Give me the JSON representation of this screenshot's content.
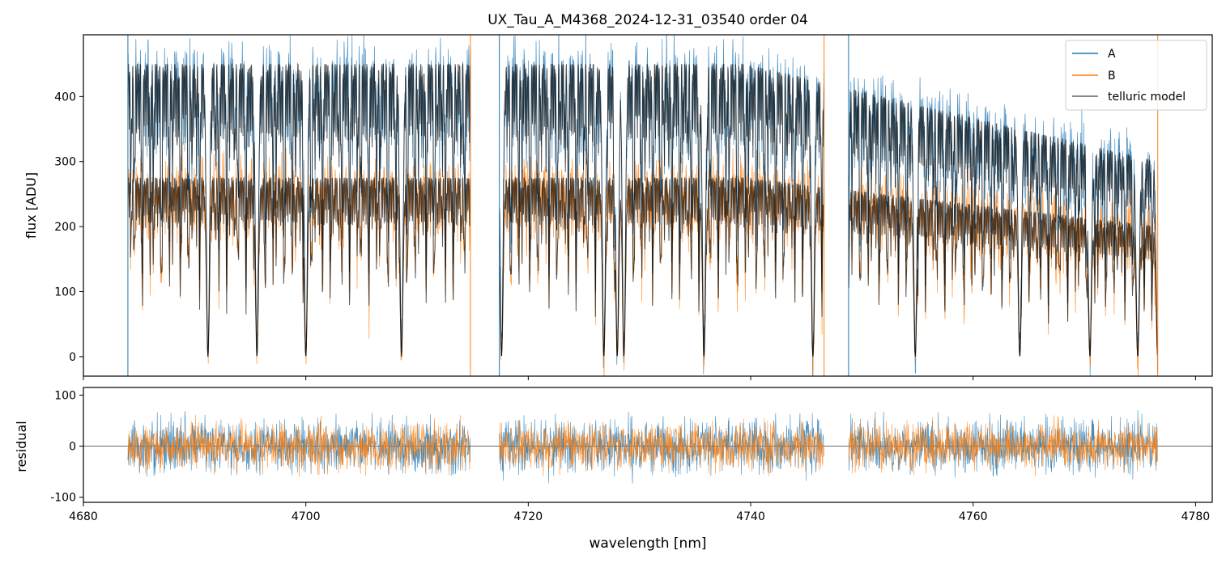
{
  "title": "UX_Tau_A_M4368_2024-12-31_03540  order 04",
  "colors": {
    "A": "#1f77b4",
    "B": "#ff7f0e",
    "model": "#000000",
    "zero": "#555555"
  },
  "chart_data": [
    {
      "type": "line",
      "panel": "top",
      "xlabel": "",
      "ylabel": "flux [ADU]",
      "xlim": [
        4680,
        4781.5
      ],
      "ylim": [
        -30,
        495
      ],
      "yticks": [
        0,
        100,
        200,
        300,
        400
      ],
      "legend": "top-right",
      "legend_entries": [
        "A",
        "B",
        "telluric model"
      ],
      "segments": [
        [
          4684.0,
          4714.8
        ],
        [
          4717.4,
          4746.6
        ],
        [
          4748.8,
          4776.6
        ]
      ],
      "series": [
        {
          "name": "A",
          "continuum": 450,
          "continuum_end": 300,
          "noise": 30
        },
        {
          "name": "B",
          "continuum": 275,
          "continuum_end": 200,
          "noise": 25
        },
        {
          "name": "telluric model"
        }
      ],
      "deep_absorption_lines": [
        4691.2,
        4695.6,
        4700.0,
        4708.6,
        4717.6,
        4726.8,
        4728.0,
        4728.6,
        4735.8,
        4745.6,
        4754.8,
        4764.2,
        4770.5,
        4774.8,
        4776.6
      ]
    },
    {
      "type": "line",
      "panel": "bottom",
      "xlabel": "wavelength [nm]",
      "ylabel": "residual",
      "xlim": [
        4680,
        4781.5
      ],
      "ylim": [
        -110,
        115
      ],
      "xticks": [
        4680,
        4700,
        4720,
        4740,
        4760,
        4780
      ],
      "yticks": [
        -100,
        0,
        100
      ],
      "series": [
        {
          "name": "A",
          "spread": 55
        },
        {
          "name": "B",
          "spread": 50
        }
      ]
    }
  ]
}
